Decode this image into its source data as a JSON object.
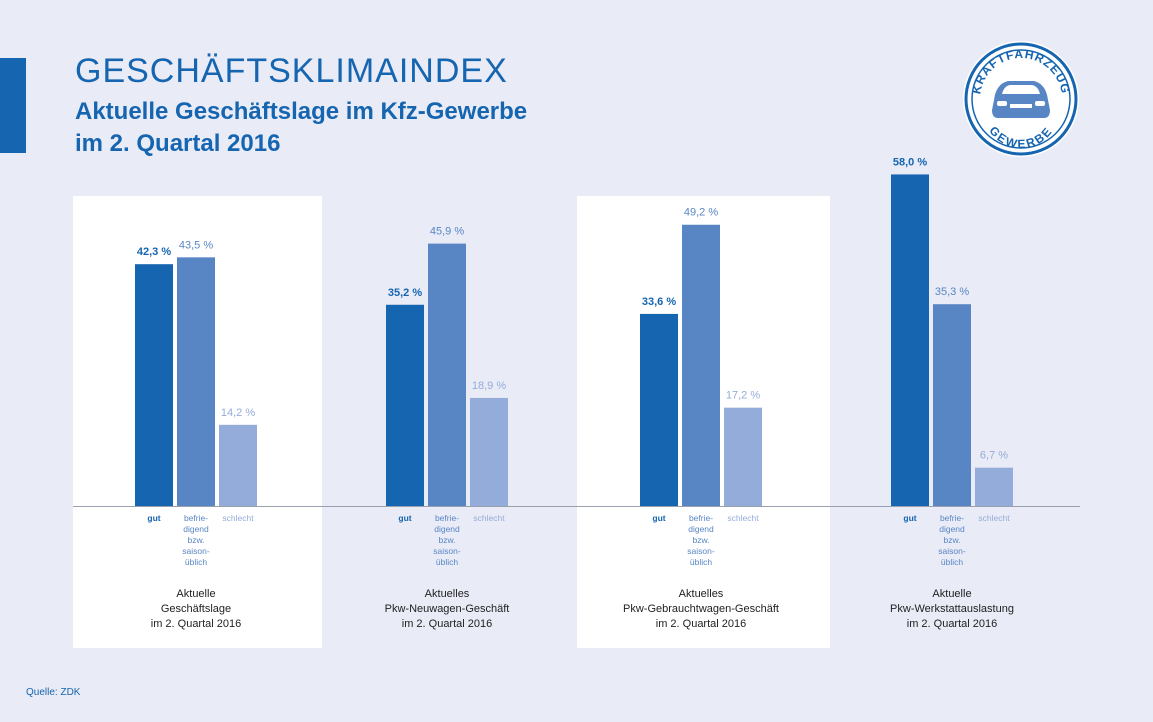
{
  "header": {
    "title": "GESCHÄFTSKLIMAINDEX",
    "subtitle_line1": "Aktuelle Geschäftslage im Kfz-Gewerbe",
    "subtitle_line2": "im 2. Quartal 2016"
  },
  "logo": {
    "top_text": "KRAFTFAHRZEUG",
    "bottom_text": "GEWERBE"
  },
  "source": "Quelle: ZDK",
  "colors": {
    "gut": "#1565b0",
    "befriedigend": "#5886c5",
    "schlecht": "#94acd9",
    "background": "#e9ebf6",
    "panel": "#ffffff"
  },
  "chart_data": {
    "type": "bar",
    "title": "Aktuelle Geschäftslage im Kfz-Gewerbe im 2. Quartal 2016",
    "ylim": [
      0,
      60
    ],
    "series_labels": [
      [
        "gut"
      ],
      [
        "befrie-",
        "digend",
        "bzw.",
        "saison-",
        "üblich"
      ],
      [
        "schlecht"
      ]
    ],
    "groups": [
      {
        "caption": [
          "Aktuelle",
          "Geschäftslage",
          "im  2. Quartal 2016"
        ],
        "values": [
          42.3,
          43.5,
          14.2
        ],
        "labels": [
          "42,3 %",
          "43,5 %",
          "14,2 %"
        ]
      },
      {
        "caption": [
          "Aktuelles",
          "Pkw-Neuwagen-Geschäft",
          "im  2. Quartal 2016"
        ],
        "values": [
          35.2,
          45.9,
          18.9
        ],
        "labels": [
          "35,2 %",
          "45,9 %",
          "18,9 %"
        ]
      },
      {
        "caption": [
          "Aktuelles",
          "Pkw-Gebrauchtwagen-Geschäft",
          "im  2. Quartal 2016"
        ],
        "values": [
          33.6,
          49.2,
          17.2
        ],
        "labels": [
          "33,6 %",
          "49,2 %",
          "17,2 %"
        ]
      },
      {
        "caption": [
          "Aktuelle",
          "Pkw-Werkstattauslastung",
          "im  2. Quartal 2016"
        ],
        "values": [
          58.0,
          35.3,
          6.7
        ],
        "labels": [
          "58,0 %",
          "35,3 %",
          "6,7 %"
        ]
      }
    ]
  }
}
